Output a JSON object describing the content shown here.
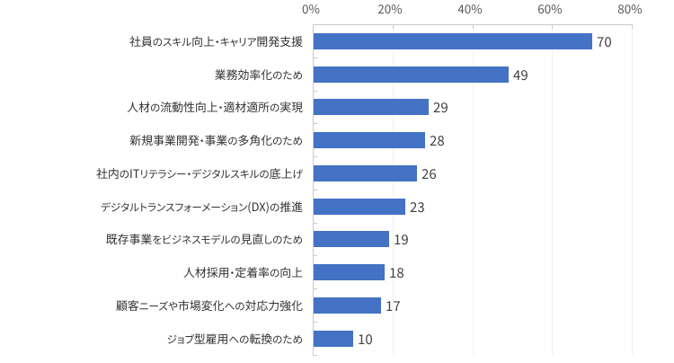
{
  "page": {
    "background_color": "#ffffff"
  },
  "chart_data": {
    "type": "bar",
    "orientation": "horizontal",
    "title": "",
    "xlabel": "",
    "ylabel": "",
    "categories": [
      "社員のスキル向上・キャリア開発支援",
      "業務効率化のため",
      "人材の流動性向上・適材適所の実現",
      "新規事業開発・事業の多角化のため",
      "社内のITリテラシー・デジタルスキルの底上げ",
      "デジタルトランスフォーメーション(DX)の推進",
      "既存事業をビジネスモデルの見直しのため",
      "人材採用・定着率の向上",
      "顧客ニーズや市場変化への対応力強化",
      "ジョブ型雇用への転換のため"
    ],
    "values": [
      70,
      49,
      29,
      28,
      26,
      23,
      19,
      18,
      17,
      10
    ],
    "data_labels": [
      "70",
      "49",
      "29",
      "28",
      "26",
      "23",
      "19",
      "18",
      "17",
      "10"
    ],
    "xlim": [
      0,
      80
    ],
    "x_tick_values": [
      0,
      20,
      40,
      60,
      80
    ],
    "x_tick_labels": [
      "0%",
      "20%",
      "40%",
      "60%",
      "80%"
    ],
    "x_axis_position": "top",
    "grid": "vertical-major-gridlines",
    "legend": "none",
    "bar_color": "#4472C4"
  },
  "style": {
    "bar_color": "#4472C4",
    "axis_line_color": "#c9c9c9",
    "gridline_color": "#f1f1f1",
    "x_tick_label_color": "#595959",
    "category_label_color": "#333333",
    "value_label_color": "#404040"
  }
}
